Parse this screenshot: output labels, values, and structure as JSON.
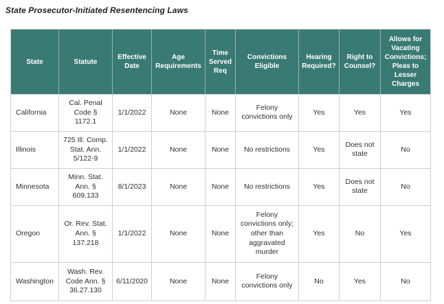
{
  "title": "State Prosecutor-Initiated Resentencing Laws",
  "colors": {
    "header_bg": "#3a7a74",
    "header_text": "#ffffff",
    "body_text": "#2e2e2e",
    "border": "#cfcfcf"
  },
  "table": {
    "columns": [
      "State",
      "Statute",
      "Effective Date",
      "Age Requirements",
      "Time Served Req",
      "Convictions Eligible",
      "Hearing Required?",
      "Right to Counsel?",
      "Allows for Vacating Convictions; Pleas to Lesser Charges"
    ],
    "rows": [
      [
        "California",
        "Cal. Penal Code § 1172.1",
        "1/1/2022",
        "None",
        "None",
        "Felony convictions only",
        "Yes",
        "Yes",
        "Yes"
      ],
      [
        "Illinois",
        "725 Ill. Comp. Stat. Ann. 5/122-9",
        "1/1/2022",
        "None",
        "None",
        "No restrictions",
        "Yes",
        "Does not state",
        "No"
      ],
      [
        "Minnesota",
        "Minn. Stat. Ann. § 609.133",
        "8/1/2023",
        "None",
        "None",
        "No restrictions",
        "Yes",
        "Does not state",
        "No"
      ],
      [
        "Oregon",
        "Or. Rev. Stat. Ann. § 137.218",
        "1/1/2022",
        "None",
        "None",
        "Felony convictions only; other than aggravated murder",
        "Yes",
        "No",
        "Yes"
      ],
      [
        "Washington",
        "Wash. Rev. Code Ann. § 36.27.130",
        "6/11/2020",
        "None",
        "None",
        "Felony convictions only",
        "No",
        "Yes",
        "No"
      ]
    ]
  }
}
